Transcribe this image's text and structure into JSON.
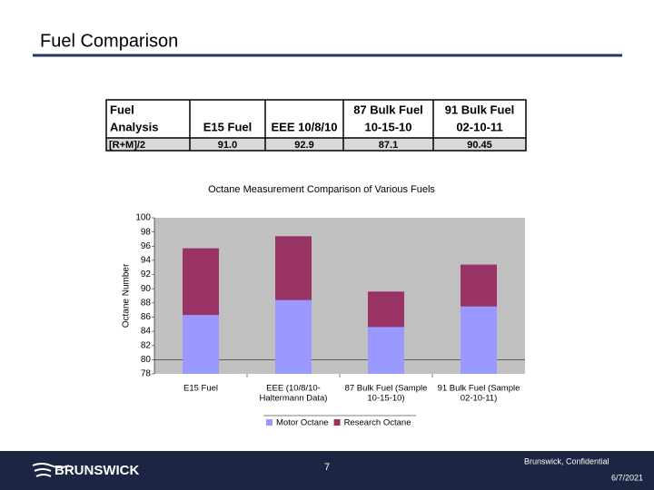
{
  "slide": {
    "title": "Fuel Comparison"
  },
  "table": {
    "header": [
      [
        "Fuel",
        "Analysis"
      ],
      [
        "E15 Fuel"
      ],
      [
        "EEE 10/8/10"
      ],
      [
        "87 Bulk Fuel",
        "10-15-10"
      ],
      [
        "91 Bulk Fuel",
        "02-10-11"
      ]
    ],
    "rows": [
      [
        "[R+M]/2",
        "91.0",
        "92.9",
        "87.1",
        "90.45"
      ]
    ]
  },
  "chart_data": {
    "type": "bar",
    "title": "Octane Measurement Comparison of Various Fuels",
    "y_label": "Octane Number",
    "categories": [
      [
        "E15 Fuel"
      ],
      [
        "EEE (10/8/10-",
        "Haltermann Data)"
      ],
      [
        "87 Bulk Fuel (Sample",
        "10-15-10)"
      ],
      [
        "91 Bulk Fuel (Sample",
        "02-10-11)"
      ]
    ],
    "series": [
      {
        "name": "Research Octane",
        "color": "#993366",
        "values": [
          95.7,
          97.4,
          89.6,
          93.4
        ]
      },
      {
        "name": "Motor Octane",
        "color": "#9999ff",
        "values": [
          86.3,
          88.4,
          84.6,
          87.5
        ]
      }
    ],
    "legend_order": [
      1,
      0
    ],
    "ylim": [
      78,
      100
    ],
    "yticks": [
      78,
      80,
      82,
      84,
      86,
      88,
      90,
      92,
      94,
      96,
      98,
      100
    ],
    "grid": false
  },
  "footer": {
    "logo": "BRUNSWICK",
    "page": "7",
    "confidential": "Brunswick, Confidential",
    "date": "6/7/2021"
  }
}
